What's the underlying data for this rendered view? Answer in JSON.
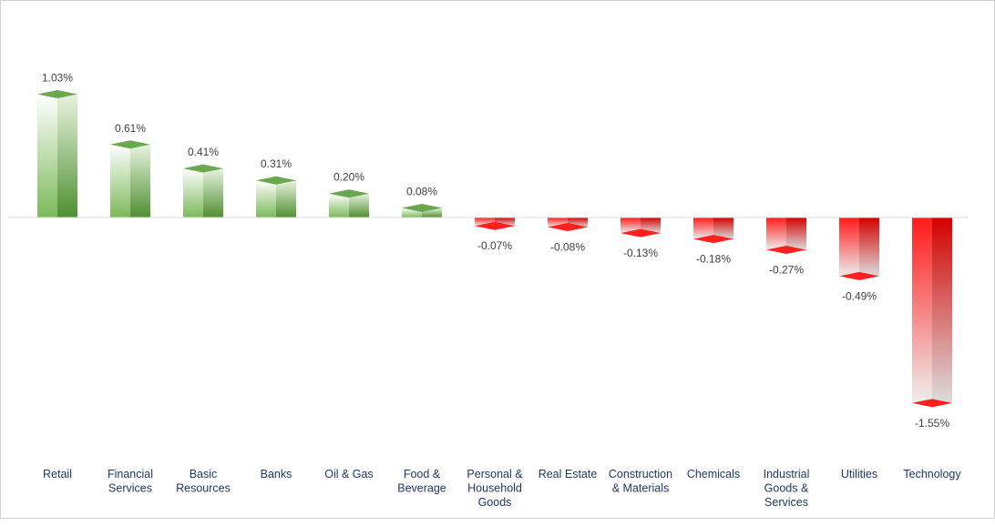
{
  "chart_data": {
    "type": "bar",
    "categories": [
      "Retail",
      "Financial Services",
      "Basic Resources",
      "Banks",
      "Oil & Gas",
      "Food & Beverage",
      "Personal & Household Goods",
      "Real Estate",
      "Construction & Materials",
      "Chemicals",
      "Industrial Goods & Services",
      "Utilities",
      "Technology"
    ],
    "category_lines": [
      [
        "Retail"
      ],
      [
        "Financial",
        "Services"
      ],
      [
        "Basic",
        "Resources"
      ],
      [
        "Banks"
      ],
      [
        "Oil & Gas"
      ],
      [
        "Food &",
        "Beverage"
      ],
      [
        "Personal &",
        "Household",
        "Goods"
      ],
      [
        "Real Estate"
      ],
      [
        "Construction",
        "& Materials"
      ],
      [
        "Chemicals"
      ],
      [
        "Industrial",
        "Goods &",
        "Services"
      ],
      [
        "Utilities"
      ],
      [
        "Technology"
      ]
    ],
    "values": [
      1.03,
      0.61,
      0.41,
      0.31,
      0.2,
      0.08,
      -0.07,
      -0.08,
      -0.13,
      -0.18,
      -0.27,
      -0.49,
      -1.55
    ],
    "value_labels": [
      "1.03%",
      "0.61%",
      "0.41%",
      "0.31%",
      "0.20%",
      "0.08%",
      "-0.07%",
      "-0.08%",
      "-0.13%",
      "-0.18%",
      "-0.27%",
      "-0.49%",
      "-1.55%"
    ],
    "title": "",
    "xlabel": "",
    "ylabel": "",
    "ylim": [
      -1.72,
      1.25
    ],
    "grid": false,
    "legend": "none",
    "colors": {
      "positive": "#70ad47",
      "positive_light": "#e2efd9",
      "negative": "#ff0000",
      "negative_light": "#f2dcdc",
      "axis": "#d9d9d9",
      "label_text": "#404040",
      "category_text": "#1f3864"
    }
  }
}
